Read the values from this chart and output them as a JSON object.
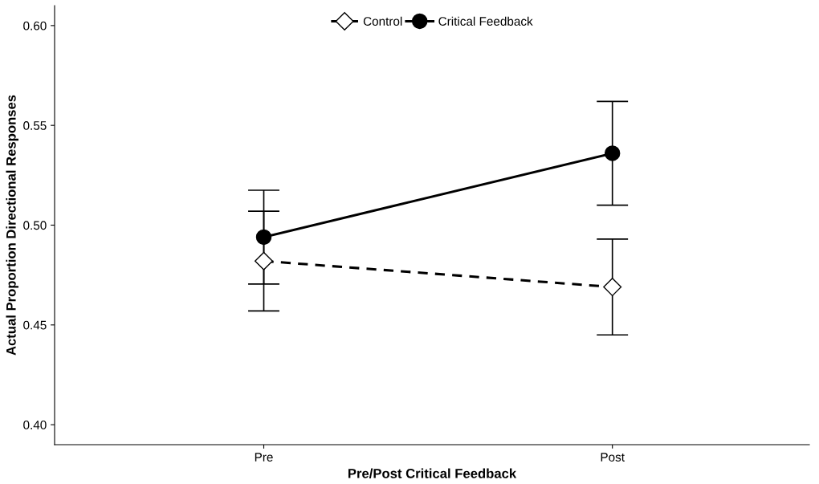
{
  "chart_data": {
    "type": "line",
    "xlabel": "Pre/Post Critical Feedback",
    "ylabel": "Actual Proportion Directional Responses",
    "categories": [
      "Pre",
      "Post"
    ],
    "series": [
      {
        "name": "Control",
        "color": "#000000",
        "values": [
          0.482,
          0.469
        ],
        "errors": [
          0.025,
          0.024
        ],
        "marker": "diamond",
        "line_style": "dashed"
      },
      {
        "name": "Critical Feedback",
        "color": "#000000",
        "values": [
          0.494,
          0.536
        ],
        "errors": [
          0.0235,
          0.026
        ],
        "marker": "circle",
        "line_style": "solid"
      }
    ],
    "ylim": [
      0.39,
      0.61
    ],
    "yticks": [
      {
        "value": 0.4,
        "label": "0.40"
      },
      {
        "value": 0.45,
        "label": "0.45"
      },
      {
        "value": 0.5,
        "label": "0.50"
      },
      {
        "value": 0.55,
        "label": "0.55"
      },
      {
        "value": 0.6,
        "label": "0.60"
      }
    ],
    "grid": false,
    "legend": "top"
  }
}
